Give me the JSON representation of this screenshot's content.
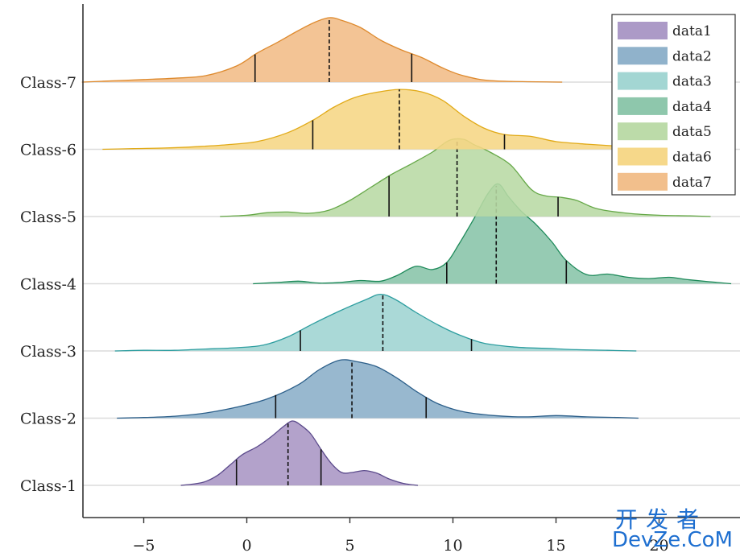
{
  "chart_data": {
    "type": "ridgeline",
    "title": "",
    "xlabel": "",
    "ylabel": "",
    "xlim": [
      -8,
      23.5
    ],
    "xticks": [
      -5,
      0,
      5,
      10,
      15,
      20
    ],
    "grid": "horizontal baselines",
    "legend_position": "top-right",
    "categories": [
      "Class-1",
      "Class-2",
      "Class-3",
      "Class-4",
      "Class-5",
      "Class-6",
      "Class-7"
    ],
    "series": [
      {
        "name": "data1",
        "category": "Class-1",
        "color": "#a895c4",
        "edge": "#5b4a8b",
        "q1": -0.5,
        "median": 2.0,
        "q3": 3.6,
        "density": [
          [
            -3.2,
            0
          ],
          [
            -2.6,
            0.02
          ],
          [
            -2.0,
            0.06
          ],
          [
            -1.4,
            0.16
          ],
          [
            -0.8,
            0.32
          ],
          [
            -0.2,
            0.48
          ],
          [
            0.5,
            0.6
          ],
          [
            1.2,
            0.76
          ],
          [
            1.8,
            0.92
          ],
          [
            2.2,
            1.0
          ],
          [
            2.6,
            0.94
          ],
          [
            3.1,
            0.8
          ],
          [
            3.6,
            0.56
          ],
          [
            4.1,
            0.34
          ],
          [
            4.6,
            0.2
          ],
          [
            5.1,
            0.2
          ],
          [
            5.7,
            0.23
          ],
          [
            6.3,
            0.19
          ],
          [
            6.9,
            0.1
          ],
          [
            7.6,
            0.03
          ],
          [
            8.3,
            0
          ]
        ]
      },
      {
        "name": "data2",
        "category": "Class-2",
        "color": "#8aaec8",
        "edge": "#2c5f8a",
        "q1": 1.4,
        "median": 5.1,
        "q3": 8.7,
        "density": [
          [
            -6.3,
            0
          ],
          [
            -5.0,
            0.01
          ],
          [
            -3.5,
            0.03
          ],
          [
            -2.0,
            0.08
          ],
          [
            -0.5,
            0.17
          ],
          [
            1.0,
            0.3
          ],
          [
            2.5,
            0.52
          ],
          [
            3.5,
            0.75
          ],
          [
            4.5,
            0.9
          ],
          [
            5.3,
            0.88
          ],
          [
            6.3,
            0.8
          ],
          [
            7.3,
            0.62
          ],
          [
            8.3,
            0.4
          ],
          [
            9.3,
            0.22
          ],
          [
            10.5,
            0.1
          ],
          [
            12.0,
            0.04
          ],
          [
            13.5,
            0.02
          ],
          [
            15.0,
            0.04
          ],
          [
            16.5,
            0.02
          ],
          [
            18.0,
            0.01
          ],
          [
            19.0,
            0
          ]
        ]
      },
      {
        "name": "data3",
        "category": "Class-3",
        "color": "#9ed4d1",
        "edge": "#2e9ea0",
        "q1": 2.6,
        "median": 6.6,
        "q3": 10.9,
        "density": [
          [
            -6.4,
            0
          ],
          [
            -5.0,
            0.01
          ],
          [
            -3.5,
            0.01
          ],
          [
            -2.0,
            0.03
          ],
          [
            -0.5,
            0.05
          ],
          [
            0.8,
            0.09
          ],
          [
            2.0,
            0.22
          ],
          [
            3.2,
            0.42
          ],
          [
            4.5,
            0.62
          ],
          [
            5.8,
            0.8
          ],
          [
            6.5,
            0.88
          ],
          [
            7.2,
            0.8
          ],
          [
            8.2,
            0.6
          ],
          [
            9.3,
            0.4
          ],
          [
            10.3,
            0.25
          ],
          [
            11.5,
            0.12
          ],
          [
            13.0,
            0.06
          ],
          [
            14.5,
            0.04
          ],
          [
            16.0,
            0.02
          ],
          [
            17.5,
            0.01
          ],
          [
            18.9,
            0
          ]
        ]
      },
      {
        "name": "data4",
        "category": "Class-4",
        "color": "#88c4a8",
        "edge": "#1e8a5a",
        "q1": 9.7,
        "median": 12.1,
        "q3": 15.5,
        "density": [
          [
            0.3,
            0
          ],
          [
            1.5,
            0.02
          ],
          [
            2.5,
            0.04
          ],
          [
            3.5,
            0.01
          ],
          [
            4.5,
            0.02
          ],
          [
            5.5,
            0.05
          ],
          [
            6.5,
            0.04
          ],
          [
            7.3,
            0.13
          ],
          [
            8.2,
            0.27
          ],
          [
            9.0,
            0.22
          ],
          [
            9.7,
            0.33
          ],
          [
            10.3,
            0.62
          ],
          [
            11.0,
            1.0
          ],
          [
            11.7,
            1.4
          ],
          [
            12.2,
            1.55
          ],
          [
            12.7,
            1.35
          ],
          [
            13.3,
            1.13
          ],
          [
            14.0,
            0.93
          ],
          [
            14.8,
            0.65
          ],
          [
            15.5,
            0.36
          ],
          [
            16.5,
            0.14
          ],
          [
            17.5,
            0.15
          ],
          [
            18.5,
            0.1
          ],
          [
            19.5,
            0.08
          ],
          [
            20.5,
            0.1
          ],
          [
            21.5,
            0.06
          ],
          [
            23.5,
            0
          ]
        ]
      },
      {
        "name": "data5",
        "category": "Class-5",
        "color": "#b8d9a4",
        "edge": "#66a848",
        "q1": 6.9,
        "median": 10.2,
        "q3": 15.1,
        "density": [
          [
            -1.3,
            0
          ],
          [
            0.0,
            0.02
          ],
          [
            1.0,
            0.06
          ],
          [
            2.0,
            0.07
          ],
          [
            3.0,
            0.05
          ],
          [
            4.0,
            0.1
          ],
          [
            5.0,
            0.25
          ],
          [
            6.0,
            0.45
          ],
          [
            7.0,
            0.65
          ],
          [
            8.0,
            0.82
          ],
          [
            9.0,
            1.0
          ],
          [
            9.8,
            1.18
          ],
          [
            10.5,
            1.2
          ],
          [
            11.0,
            1.12
          ],
          [
            11.8,
            1.0
          ],
          [
            12.8,
            0.8
          ],
          [
            13.8,
            0.42
          ],
          [
            14.5,
            0.32
          ],
          [
            15.2,
            0.3
          ],
          [
            16.0,
            0.25
          ],
          [
            17.0,
            0.12
          ],
          [
            18.5,
            0.05
          ],
          [
            20.0,
            0.02
          ],
          [
            21.5,
            0.01
          ],
          [
            22.5,
            0
          ]
        ]
      },
      {
        "name": "data6",
        "category": "Class-6",
        "color": "#f6d684",
        "edge": "#e1aa18",
        "q1": 3.2,
        "median": 7.4,
        "q3": 12.5,
        "density": [
          [
            -7.0,
            0
          ],
          [
            -5.5,
            0.01
          ],
          [
            -4.0,
            0.02
          ],
          [
            -2.5,
            0.04
          ],
          [
            -1.0,
            0.07
          ],
          [
            0.5,
            0.12
          ],
          [
            2.0,
            0.26
          ],
          [
            3.2,
            0.45
          ],
          [
            4.2,
            0.65
          ],
          [
            5.2,
            0.8
          ],
          [
            6.2,
            0.88
          ],
          [
            7.4,
            0.93
          ],
          [
            8.5,
            0.89
          ],
          [
            9.5,
            0.76
          ],
          [
            10.5,
            0.52
          ],
          [
            11.5,
            0.33
          ],
          [
            12.5,
            0.23
          ],
          [
            13.8,
            0.2
          ],
          [
            15.0,
            0.12
          ],
          [
            16.5,
            0.08
          ],
          [
            18.0,
            0.05
          ],
          [
            19.5,
            0.02
          ],
          [
            20.5,
            0
          ]
        ]
      },
      {
        "name": "data7",
        "category": "Class-7",
        "color": "#f1bc86",
        "edge": "#de8a2e",
        "q1": 0.4,
        "median": 4.0,
        "q3": 8.0,
        "density": [
          [
            -8.0,
            0
          ],
          [
            -6.5,
            0.02
          ],
          [
            -5.0,
            0.04
          ],
          [
            -3.5,
            0.06
          ],
          [
            -2.0,
            0.1
          ],
          [
            -0.5,
            0.25
          ],
          [
            0.5,
            0.45
          ],
          [
            1.5,
            0.62
          ],
          [
            2.5,
            0.8
          ],
          [
            3.3,
            0.93
          ],
          [
            4.0,
            1.0
          ],
          [
            4.6,
            0.96
          ],
          [
            5.5,
            0.85
          ],
          [
            6.5,
            0.65
          ],
          [
            7.5,
            0.5
          ],
          [
            8.5,
            0.38
          ],
          [
            9.5,
            0.22
          ],
          [
            10.5,
            0.1
          ],
          [
            12.0,
            0.02
          ],
          [
            15.3,
            0
          ]
        ]
      }
    ]
  },
  "watermark": {
    "line1": "开发者",
    "line2": "DevZe.CoM"
  }
}
